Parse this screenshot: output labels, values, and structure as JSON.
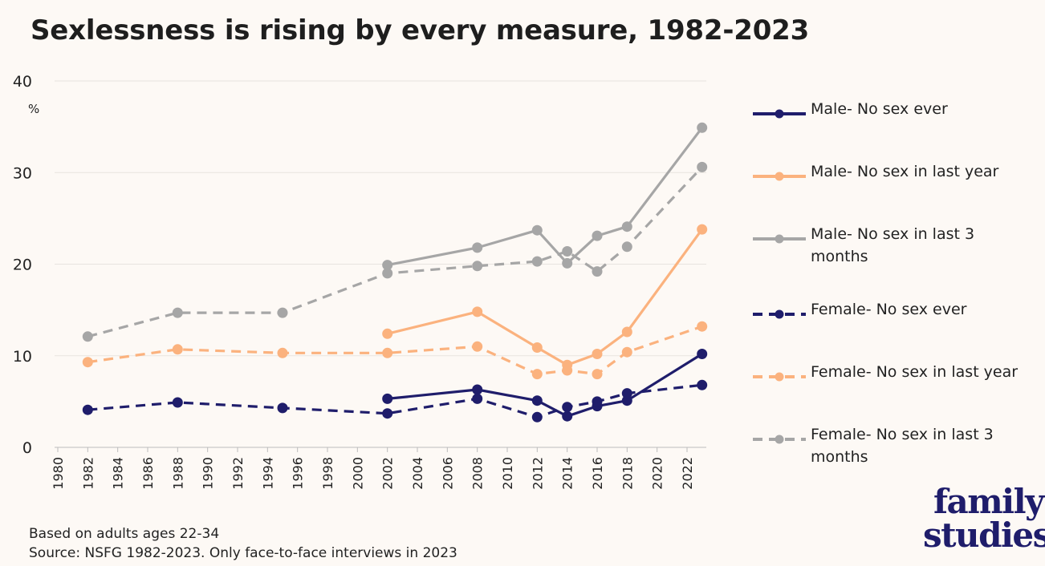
{
  "chart_data": {
    "type": "line",
    "title": "Sexlessness is rising by every measure, 1982-2023",
    "ylabel": "%",
    "ylim": [
      0,
      40
    ],
    "yticks": [
      0,
      10,
      20,
      30,
      40
    ],
    "xlim": [
      1980,
      2023
    ],
    "xticks": [
      "1980",
      "1982",
      "1984",
      "1986",
      "1988",
      "1990",
      "1992",
      "1994",
      "1996",
      "1998",
      "2000",
      "2002",
      "2004",
      "2006",
      "2008",
      "2010",
      "2012",
      "2014",
      "2016",
      "2018",
      "2020",
      "2022"
    ],
    "grid": true,
    "legend_position": "right",
    "series": [
      {
        "name": "Male-  No sex ever",
        "color": "#1f1d6b",
        "dash": false,
        "points": [
          [
            2002,
            5.3
          ],
          [
            2008,
            6.3
          ],
          [
            2012,
            5.1
          ],
          [
            2014,
            3.4
          ],
          [
            2016,
            4.5
          ],
          [
            2018,
            5.1
          ],
          [
            2023,
            10.2
          ]
        ]
      },
      {
        "name": "Male-  No sex in last year",
        "color": "#fbb27e",
        "dash": false,
        "points": [
          [
            2002,
            12.4
          ],
          [
            2008,
            14.8
          ],
          [
            2012,
            10.9
          ],
          [
            2014,
            9.0
          ],
          [
            2016,
            10.2
          ],
          [
            2018,
            12.6
          ],
          [
            2023,
            23.8
          ]
        ]
      },
      {
        "name": "Male-  No sex in last 3 months",
        "color": "#a6a6a6",
        "dash": false,
        "points": [
          [
            2002,
            19.9
          ],
          [
            2008,
            21.8
          ],
          [
            2012,
            23.7
          ],
          [
            2014,
            20.1
          ],
          [
            2016,
            23.1
          ],
          [
            2018,
            24.1
          ],
          [
            2023,
            34.9
          ]
        ]
      },
      {
        "name": "Female-  No sex ever",
        "color": "#1f1d6b",
        "dash": true,
        "points": [
          [
            1982,
            4.1
          ],
          [
            1988,
            4.9
          ],
          [
            1995,
            4.3
          ],
          [
            2002,
            3.7
          ],
          [
            2008,
            5.3
          ],
          [
            2012,
            3.3
          ],
          [
            2014,
            4.4
          ],
          [
            2016,
            5.0
          ],
          [
            2018,
            5.9
          ],
          [
            2023,
            6.8
          ]
        ]
      },
      {
        "name": "Female-  No sex in last year",
        "color": "#fbb27e",
        "dash": true,
        "points": [
          [
            1982,
            9.3
          ],
          [
            1988,
            10.7
          ],
          [
            1995,
            10.3
          ],
          [
            2002,
            10.3
          ],
          [
            2008,
            11.0
          ],
          [
            2012,
            8.0
          ],
          [
            2014,
            8.4
          ],
          [
            2016,
            8.0
          ],
          [
            2018,
            10.4
          ],
          [
            2023,
            13.2
          ]
        ]
      },
      {
        "name": "Female-  No sex in last 3 months",
        "color": "#a6a6a6",
        "dash": true,
        "points": [
          [
            1982,
            12.1
          ],
          [
            1988,
            14.7
          ],
          [
            1995,
            14.7
          ],
          [
            2002,
            19.0
          ],
          [
            2008,
            19.8
          ],
          [
            2012,
            20.3
          ],
          [
            2014,
            21.4
          ],
          [
            2016,
            19.2
          ],
          [
            2018,
            21.9
          ],
          [
            2023,
            30.6
          ]
        ]
      }
    ],
    "annotations": [
      "Based on adults ages 22-34",
      "Source: NSFG 1982-2023. Only face-to-face interviews in 2023"
    ]
  },
  "legend": {
    "items": [
      {
        "label": "Male-  No sex ever",
        "color": "#1f1d6b",
        "dash": false
      },
      {
        "label": "Male-  No sex in last year",
        "color": "#fbb27e",
        "dash": false
      },
      {
        "label": "Male-  No sex in last 3 months",
        "color": "#a6a6a6",
        "dash": false
      },
      {
        "label": "Female-  No sex ever",
        "color": "#1f1d6b",
        "dash": true
      },
      {
        "label": "Female-  No sex in last year",
        "color": "#fbb27e",
        "dash": true
      },
      {
        "label": "Female-  No sex in last 3 months",
        "color": "#a6a6a6",
        "dash": true
      }
    ]
  },
  "footnote": {
    "line1": "Based on adults ages 22-34",
    "line2": "Source: NSFG 1982-2023. Only face-to-face interviews in 2023"
  },
  "brand": {
    "line1": "family",
    "line2": "studies",
    "color": "#1f1d6b"
  }
}
